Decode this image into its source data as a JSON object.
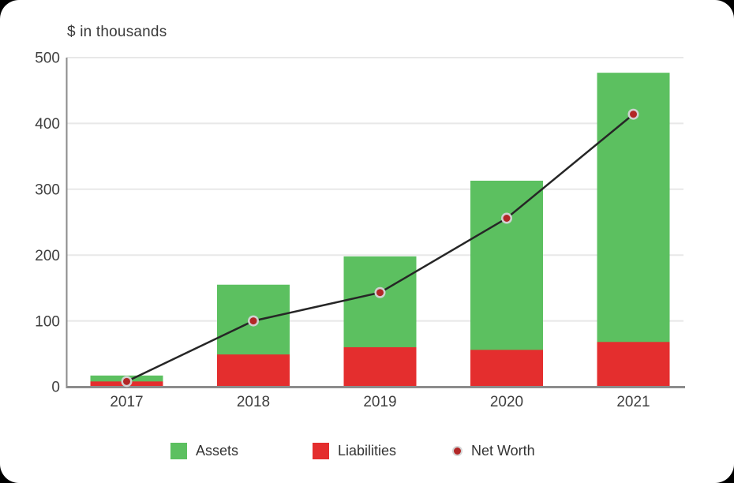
{
  "chart_data": {
    "type": "bar",
    "title": "$ in thousands",
    "categories": [
      "2017",
      "2018",
      "2019",
      "2020",
      "2021"
    ],
    "series": [
      {
        "name": "Assets",
        "kind": "bar",
        "color": "#5cc060",
        "values": [
          17,
          155,
          198,
          313,
          477
        ]
      },
      {
        "name": "Liabilities",
        "kind": "bar",
        "color": "#e42e2e",
        "values": [
          8,
          49,
          60,
          56,
          68
        ]
      },
      {
        "name": "Net Worth",
        "kind": "line",
        "color": "#262626",
        "marker_fill": "#b22727",
        "marker_ring": "#d1d1d1",
        "values": [
          8,
          100,
          143,
          256,
          414
        ]
      }
    ],
    "bar_mode": "overlap",
    "ylim": [
      0,
      500
    ],
    "yticks": [
      0,
      100,
      200,
      300,
      400,
      500
    ],
    "grid": true,
    "grid_color": "#e8e8e8",
    "axis_color": "#8c8c8c",
    "tick_label_color": "#3f3f3f",
    "legend_position": "bottom"
  }
}
